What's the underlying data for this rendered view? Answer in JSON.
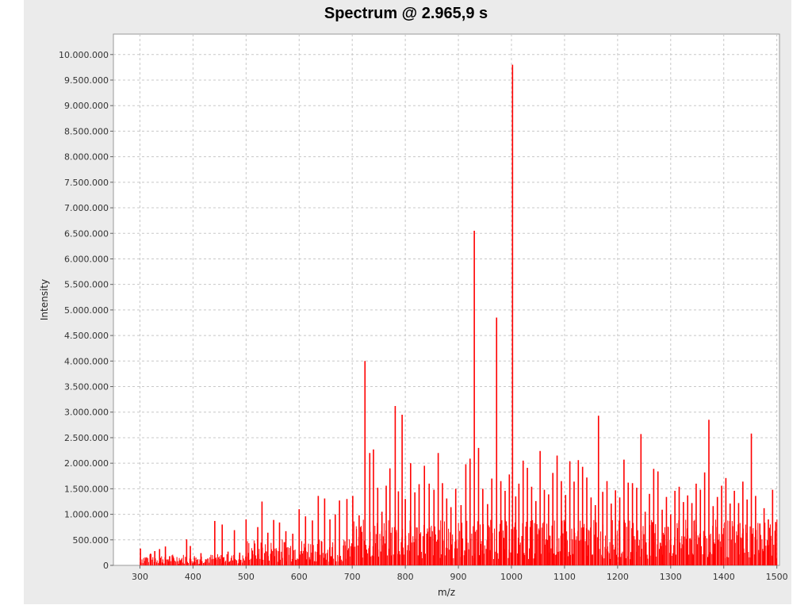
{
  "chart_data": {
    "type": "bar",
    "title": "Spectrum @ 2.965,9 s",
    "xlabel": "m/z",
    "ylabel": "Intensity",
    "xlim": [
      250,
      1505
    ],
    "ylim": [
      0,
      10400000
    ],
    "grid": true,
    "bar_color": "#ff0000",
    "x_ticks": [
      300,
      400,
      500,
      600,
      700,
      800,
      900,
      1000,
      1100,
      1200,
      1300,
      1400,
      1500
    ],
    "x_tick_labels": [
      "300",
      "400",
      "500",
      "600",
      "700",
      "800",
      "900",
      "1000",
      "1100",
      "1200",
      "1300",
      "1400",
      "1500"
    ],
    "y_ticks": [
      0,
      500000,
      1000000,
      1500000,
      2000000,
      2500000,
      3000000,
      3500000,
      4000000,
      4500000,
      5000000,
      5500000,
      6000000,
      6500000,
      7000000,
      7500000,
      8000000,
      8500000,
      9000000,
      9500000,
      10000000
    ],
    "y_tick_labels": [
      "0",
      "500.000",
      "1.000.000",
      "1.500.000",
      "2.000.000",
      "2.500.000",
      "3.000.000",
      "3.500.000",
      "4.000.000",
      "4.500.000",
      "5.000.000",
      "5.500.000",
      "6.000.000",
      "6.500.000",
      "7.000.000",
      "7.500.000",
      "8.000.000",
      "8.500.000",
      "9.000.000",
      "9.500.000",
      "10.000.000"
    ],
    "peaks": {
      "mz": [
        301,
        312,
        320,
        328,
        337,
        348,
        356,
        362,
        376,
        388,
        395,
        403,
        415,
        424,
        441,
        455,
        466,
        478,
        488,
        500,
        512,
        522,
        530,
        541,
        552,
        563,
        575,
        588,
        600,
        612,
        625,
        636,
        648,
        658,
        668,
        676,
        690,
        701,
        713,
        724,
        733,
        740,
        748,
        756,
        764,
        771,
        781,
        787,
        794,
        800,
        810,
        818,
        826,
        836,
        845,
        854,
        862,
        870,
        878,
        886,
        895,
        905,
        914,
        922,
        930,
        938,
        946,
        955,
        963,
        972,
        980,
        988,
        996,
        1002,
        1008,
        1014,
        1022,
        1030,
        1038,
        1046,
        1054,
        1062,
        1070,
        1078,
        1086,
        1094,
        1102,
        1110,
        1118,
        1126,
        1134,
        1142,
        1150,
        1158,
        1164,
        1172,
        1180,
        1188,
        1196,
        1204,
        1212,
        1220,
        1228,
        1236,
        1244,
        1252,
        1260,
        1268,
        1276,
        1284,
        1292,
        1300,
        1308,
        1316,
        1324,
        1332,
        1340,
        1348,
        1356,
        1364,
        1372,
        1380,
        1388,
        1396,
        1404,
        1412,
        1420,
        1428,
        1436,
        1444,
        1452,
        1460,
        1468,
        1476,
        1484,
        1492,
        1498
      ],
      "intensity": [
        330000,
        150000,
        230000,
        280000,
        320000,
        370000,
        180000,
        140000,
        100000,
        510000,
        380000,
        150000,
        240000,
        120000,
        870000,
        800000,
        270000,
        690000,
        250000,
        900000,
        290000,
        750000,
        1250000,
        640000,
        890000,
        840000,
        670000,
        620000,
        1100000,
        960000,
        880000,
        1360000,
        1310000,
        900000,
        1000000,
        1270000,
        1300000,
        1360000,
        980000,
        4000000,
        2200000,
        2270000,
        1520000,
        1050000,
        1560000,
        1900000,
        3120000,
        1450000,
        2950000,
        1300000,
        2000000,
        1430000,
        1590000,
        1950000,
        1600000,
        1480000,
        2200000,
        1610000,
        1310000,
        1140000,
        1500000,
        1180000,
        1980000,
        2090000,
        6550000,
        2300000,
        1500000,
        1200000,
        1700000,
        4850000,
        1650000,
        1460000,
        1780000,
        9800000,
        1350000,
        1600000,
        2050000,
        1910000,
        1540000,
        1260000,
        2240000,
        1480000,
        1390000,
        1810000,
        2150000,
        1650000,
        1380000,
        2040000,
        1640000,
        2060000,
        1930000,
        1720000,
        1330000,
        1180000,
        2930000,
        1440000,
        1650000,
        1210000,
        1470000,
        1330000,
        2070000,
        1620000,
        1610000,
        1520000,
        2570000,
        1050000,
        1400000,
        1890000,
        1840000,
        1090000,
        1340000,
        1000000,
        1460000,
        1540000,
        1240000,
        1370000,
        1220000,
        1600000,
        1480000,
        1820000,
        2850000,
        1160000,
        1340000,
        1560000,
        1710000,
        1210000,
        1460000,
        1220000,
        1640000,
        1290000,
        2580000,
        1360000,
        820000,
        1120000,
        900000,
        1480000,
        850000
      ]
    }
  }
}
